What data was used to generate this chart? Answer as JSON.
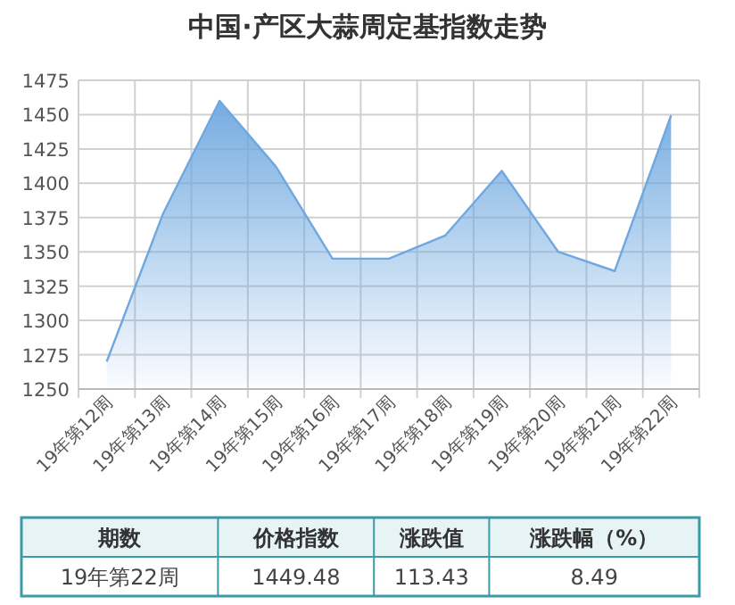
{
  "chart_data": {
    "type": "area",
    "title": "中国·产区大蒜周定基指数走势",
    "categories": [
      "19年第12周",
      "19年第13周",
      "19年第14周",
      "19年第15周",
      "19年第16周",
      "19年第17周",
      "19年第18周",
      "19年第19周",
      "19年第20周",
      "19年第21周",
      "19年第22周"
    ],
    "values": [
      1270,
      1378,
      1460,
      1412,
      1345,
      1345,
      1362,
      1409,
      1350,
      1336,
      1449.48
    ],
    "color": "#6fa8e0",
    "ylim": [
      1250,
      1475
    ],
    "yticks": [
      1250,
      1275,
      1300,
      1325,
      1350,
      1375,
      1400,
      1425,
      1450,
      1475
    ],
    "grid": true,
    "annotations": [
      "期数",
      "价格指数",
      "涨跌值",
      "涨跌幅（%）",
      "19年第22周",
      "1449.48",
      "113.43",
      "8.49"
    ]
  }
}
